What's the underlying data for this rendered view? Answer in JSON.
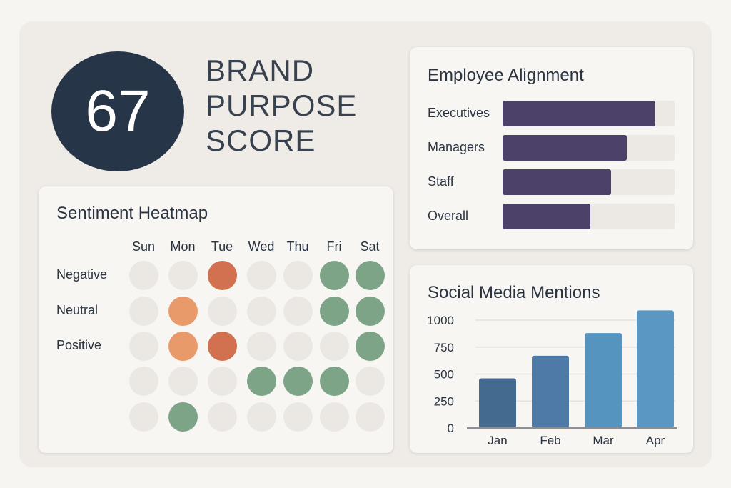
{
  "score": {
    "value": "67",
    "title_lines": [
      "BRAND",
      "PURPOSE",
      "SCORE"
    ]
  },
  "heatmap": {
    "title": "Sentiment Heatmap",
    "days": [
      "Sun",
      "Mon",
      "Tue",
      "Wed",
      "Thu",
      "Fri",
      "Sat"
    ],
    "row_labels": [
      "Negative",
      "Neutral",
      "Positive"
    ],
    "grid": [
      [
        "n",
        "n",
        "r",
        "n",
        "n",
        "g",
        "g"
      ],
      [
        "n",
        "o",
        "n",
        "n",
        "n",
        "g",
        "g"
      ],
      [
        "n",
        "o",
        "r",
        "n",
        "n",
        "n",
        "g"
      ],
      [
        "n",
        "n",
        "n",
        "g",
        "g",
        "g",
        "n"
      ],
      [
        "n",
        "g",
        "n",
        "n",
        "n",
        "n",
        "n"
      ]
    ],
    "colors": {
      "n": "#ebe8e4",
      "o": "#e89a6a",
      "r": "#d2714f",
      "g": "#7da487"
    }
  },
  "alignment": {
    "title": "Employee Alignment",
    "items": [
      {
        "label": "Executives",
        "value": 0.89
      },
      {
        "label": "Managers",
        "value": 0.72
      },
      {
        "label": "Staff",
        "value": 0.63
      },
      {
        "label": "Overall",
        "value": 0.51
      }
    ],
    "color": "#4c4269"
  },
  "chart_data": {
    "type": "bar",
    "title": "Social Media Mentions",
    "categories": [
      "Jan",
      "Feb",
      "Mar",
      "Apr"
    ],
    "values": [
      460,
      670,
      880,
      1090
    ],
    "yticks": [
      "0",
      "250",
      "500",
      "750",
      "1000"
    ],
    "ylim": [
      0,
      1100
    ],
    "colors": [
      "#456a8f",
      "#4d7aa6",
      "#5694c0",
      "#5a98c3"
    ]
  }
}
